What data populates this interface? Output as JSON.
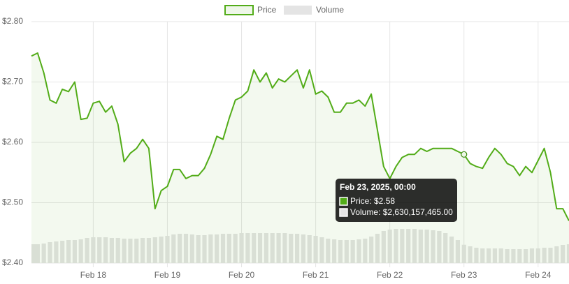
{
  "chart_data": {
    "type": "line",
    "x": [
      "2025-02-17 04:00",
      "2025-02-17 06:00",
      "2025-02-17 08:00",
      "2025-02-17 10:00",
      "2025-02-17 12:00",
      "2025-02-17 14:00",
      "2025-02-17 16:00",
      "2025-02-17 18:00",
      "2025-02-17 20:00",
      "2025-02-17 22:00",
      "2025-02-18 00:00",
      "2025-02-18 02:00",
      "2025-02-18 04:00",
      "2025-02-18 06:00",
      "2025-02-18 08:00",
      "2025-02-18 10:00",
      "2025-02-18 12:00",
      "2025-02-18 14:00",
      "2025-02-18 16:00",
      "2025-02-18 18:00",
      "2025-02-18 20:00",
      "2025-02-18 22:00",
      "2025-02-19 00:00",
      "2025-02-19 02:00",
      "2025-02-19 04:00",
      "2025-02-19 06:00",
      "2025-02-19 08:00",
      "2025-02-19 10:00",
      "2025-02-19 12:00",
      "2025-02-19 14:00",
      "2025-02-19 16:00",
      "2025-02-19 18:00",
      "2025-02-19 20:00",
      "2025-02-19 22:00",
      "2025-02-20 00:00",
      "2025-02-20 02:00",
      "2025-02-20 04:00",
      "2025-02-20 06:00",
      "2025-02-20 08:00",
      "2025-02-20 10:00",
      "2025-02-20 12:00",
      "2025-02-20 14:00",
      "2025-02-20 16:00",
      "2025-02-20 18:00",
      "2025-02-20 20:00",
      "2025-02-20 22:00",
      "2025-02-21 00:00",
      "2025-02-21 02:00",
      "2025-02-21 04:00",
      "2025-02-21 06:00",
      "2025-02-21 08:00",
      "2025-02-21 10:00",
      "2025-02-21 12:00",
      "2025-02-21 14:00",
      "2025-02-21 16:00",
      "2025-02-21 18:00",
      "2025-02-21 20:00",
      "2025-02-21 22:00",
      "2025-02-22 00:00",
      "2025-02-22 02:00",
      "2025-02-22 04:00",
      "2025-02-22 06:00",
      "2025-02-22 08:00",
      "2025-02-22 10:00",
      "2025-02-22 12:00",
      "2025-02-22 14:00",
      "2025-02-22 16:00",
      "2025-02-22 18:00",
      "2025-02-22 20:00",
      "2025-02-22 22:00",
      "2025-02-23 00:00",
      "2025-02-23 02:00",
      "2025-02-23 04:00",
      "2025-02-23 06:00",
      "2025-02-23 08:00",
      "2025-02-23 10:00",
      "2025-02-23 12:00",
      "2025-02-23 14:00",
      "2025-02-23 16:00",
      "2025-02-23 18:00",
      "2025-02-23 20:00",
      "2025-02-23 22:00",
      "2025-02-24 00:00",
      "2025-02-24 02:00",
      "2025-02-24 04:00",
      "2025-02-24 06:00",
      "2025-02-24 08:00",
      "2025-02-24 10:00"
    ],
    "series": [
      {
        "name": "Price",
        "color": "#52ac18",
        "values": [
          2.743,
          2.748,
          2.715,
          2.67,
          2.665,
          2.688,
          2.684,
          2.7,
          2.638,
          2.64,
          2.665,
          2.668,
          2.65,
          2.66,
          2.63,
          2.568,
          2.582,
          2.59,
          2.605,
          2.59,
          2.49,
          2.52,
          2.527,
          2.555,
          2.555,
          2.54,
          2.545,
          2.545,
          2.557,
          2.58,
          2.61,
          2.605,
          2.64,
          2.67,
          2.675,
          2.685,
          2.72,
          2.7,
          2.715,
          2.69,
          2.705,
          2.7,
          2.71,
          2.72,
          2.69,
          2.72,
          2.68,
          2.685,
          2.675,
          2.65,
          2.65,
          2.665,
          2.665,
          2.67,
          2.66,
          2.68,
          2.62,
          2.56,
          2.54,
          2.56,
          2.575,
          2.58,
          2.58,
          2.59,
          2.585,
          2.59,
          2.59,
          2.59,
          2.59,
          2.585,
          2.58,
          2.565,
          2.56,
          2.557,
          2.575,
          2.59,
          2.58,
          2.565,
          2.56,
          2.545,
          2.56,
          2.55,
          2.57,
          2.59,
          2.55,
          2.49,
          2.49,
          2.47
        ]
      },
      {
        "name": "Volume",
        "color": "#e4e4e4",
        "axis": "y2",
        "values": [
          2700000000.0,
          2700000000.0,
          2800000000.0,
          3000000000.0,
          3100000000.0,
          3200000000.0,
          3300000000.0,
          3300000000.0,
          3400000000.0,
          3600000000.0,
          3700000000.0,
          3700000000.0,
          3700000000.0,
          3600000000.0,
          3600000000.0,
          3500000000.0,
          3500000000.0,
          3500000000.0,
          3600000000.0,
          3600000000.0,
          3700000000.0,
          3800000000.0,
          3900000000.0,
          4100000000.0,
          4200000000.0,
          4200000000.0,
          4100000000.0,
          4000000000.0,
          4000000000.0,
          4100000000.0,
          4100000000.0,
          4200000000.0,
          4200000000.0,
          4200000000.0,
          4300000000.0,
          4300000000.0,
          4300000000.0,
          4300000000.0,
          4300000000.0,
          4300000000.0,
          4300000000.0,
          4300000000.0,
          4200000000.0,
          4200000000.0,
          4100000000.0,
          4000000000.0,
          3900000000.0,
          3700000000.0,
          3500000000.0,
          3400000000.0,
          3300000000.0,
          3300000000.0,
          3300000000.0,
          3400000000.0,
          3500000000.0,
          3800000000.0,
          4200000000.0,
          4600000000.0,
          4800000000.0,
          4900000000.0,
          4900000000.0,
          4900000000.0,
          4900000000.0,
          4800000000.0,
          4800000000.0,
          4700000000.0,
          4600000000.0,
          4300000000.0,
          3800000000.0,
          3300000000.0,
          2630157465,
          2400000000.0,
          2200000000.0,
          2100000000.0,
          2100000000.0,
          2100000000.0,
          2100000000.0,
          2000000000.0,
          2000000000.0,
          2000000000.0,
          2000000000.0,
          2100000000.0,
          2100000000.0,
          2200000000.0,
          2200000000.0,
          2400000000.0,
          2600000000.0,
          2700000000.0
        ]
      }
    ],
    "ylim": [
      2.4,
      2.8
    ],
    "yticks": [
      {
        "value": 2.4,
        "label": "$2.40"
      },
      {
        "value": 2.5,
        "label": "$2.50"
      },
      {
        "value": 2.6,
        "label": "$2.60"
      },
      {
        "value": 2.7,
        "label": "$2.70"
      },
      {
        "value": 2.8,
        "label": "$2.80"
      }
    ],
    "y2lim": [
      0,
      34600000000.0
    ],
    "xticks": [
      {
        "value": "2025-02-18 00:00",
        "label": "Feb 18"
      },
      {
        "value": "2025-02-19 00:00",
        "label": "Feb 19"
      },
      {
        "value": "2025-02-20 00:00",
        "label": "Feb 20"
      },
      {
        "value": "2025-02-21 00:00",
        "label": "Feb 21"
      },
      {
        "value": "2025-02-22 00:00",
        "label": "Feb 22"
      },
      {
        "value": "2025-02-23 00:00",
        "label": "Feb 23"
      },
      {
        "value": "2025-02-24 00:00",
        "label": "Feb 24"
      }
    ],
    "grid": true,
    "legend": "top",
    "tooltip": {
      "index": 70,
      "title": "Feb 23, 2025, 00:00",
      "lines": [
        "Price: $2.58",
        "Volume: $2,630,157,465.00"
      ]
    }
  }
}
